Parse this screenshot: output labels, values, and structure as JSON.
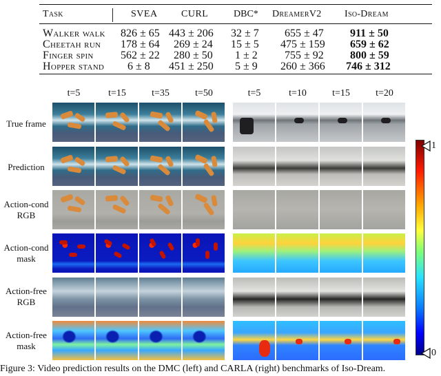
{
  "table": {
    "headers": [
      "Task",
      "SVEA",
      "CURL",
      "DBC*",
      "DreamerV2",
      "Iso-Dream"
    ],
    "rows": [
      {
        "task": "Walker walk",
        "svea": "826 ± 65",
        "curl": "443 ± 206",
        "dbc": "32 ± 7",
        "dreamer": "655 ± 47",
        "iso": "911 ± 50"
      },
      {
        "task": "Cheetah run",
        "svea": "178 ± 64",
        "curl": "269 ± 24",
        "dbc": "15 ± 5",
        "dreamer": "475 ± 159",
        "iso": "659 ± 62"
      },
      {
        "task": "Finger spin",
        "svea": "562 ± 22",
        "curl": "280 ± 50",
        "dbc": "1 ± 2",
        "dreamer": "755 ± 92",
        "iso": "800 ± 59"
      },
      {
        "task": "Hopper stand",
        "svea": "6 ± 8",
        "curl": "451 ± 250",
        "dbc": "5 ± 9",
        "dreamer": "260 ± 366",
        "iso": "746 ± 312"
      }
    ]
  },
  "figure": {
    "left_columns": [
      "t=5",
      "t=15",
      "t=35",
      "t=50"
    ],
    "right_columns": [
      "t=5",
      "t=10",
      "t=15",
      "t=20"
    ],
    "row_labels": [
      [
        "True frame"
      ],
      [
        "Prediction"
      ],
      [
        "Action-cond",
        "RGB"
      ],
      [
        "Action-cond",
        "mask"
      ],
      [
        "Action-free",
        "RGB"
      ],
      [
        "Action-free",
        "mask"
      ]
    ],
    "colorbar": {
      "top_label": "1",
      "bottom_label": "0"
    },
    "caption": "Figure 3: Video prediction results on the DMC (left) and CARLA (right) benchmarks of Iso-Dream."
  }
}
